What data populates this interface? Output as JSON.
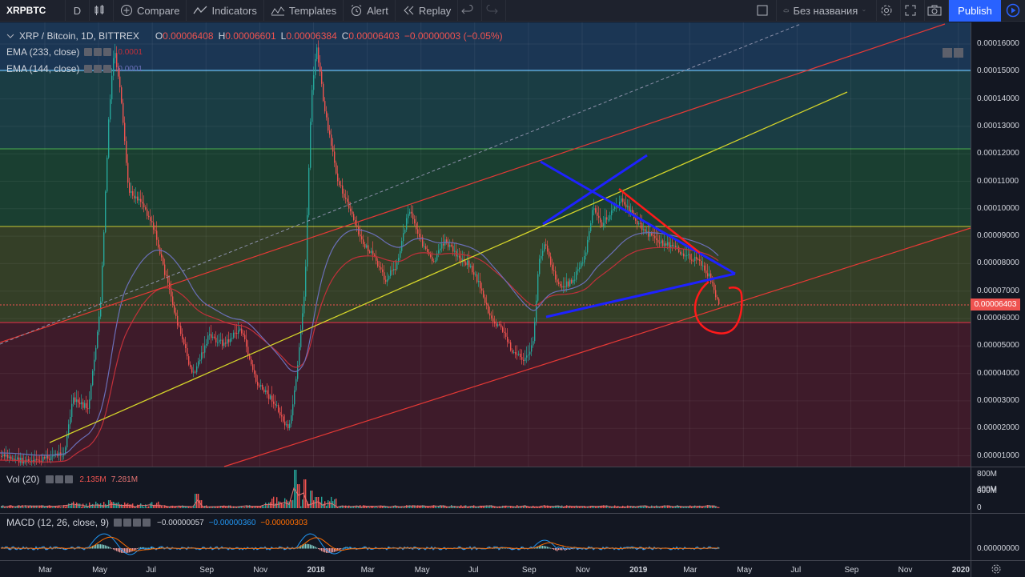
{
  "toolbar": {
    "symbol": "XRPBTC",
    "interval": "D",
    "compare": "Compare",
    "indicators": "Indicators",
    "templates": "Templates",
    "alert": "Alert",
    "replay": "Replay",
    "layout_name": "Без названия",
    "publish": "Publish"
  },
  "legend": {
    "title": "XRP / Bitcoin, 1D, BITTREX",
    "o_key": "O",
    "o": "0.00006408",
    "h_key": "H",
    "h": "0.00006601",
    "l_key": "L",
    "l": "0.00006384",
    "c_key": "C",
    "c": "0.00006403",
    "change": "−0.00000003 (−0.05%)",
    "ema233": "EMA (233, close)",
    "ema233_val": "0.0001",
    "ema144": "EMA (144, close)",
    "ema144_val": "0.0001",
    "vol": "Vol (20)",
    "vol_val1": "2.135M",
    "vol_val2": "7.281M",
    "macd": "MACD (12, 26, close, 9)",
    "macd_v1": "−0.00000057",
    "macd_v2": "−0.00000360",
    "macd_v3": "−0.00000303"
  },
  "price_scale": [
    "0.00016000",
    "0.00015000",
    "0.00014000",
    "0.00013000",
    "0.00012000",
    "0.00011000",
    "0.00010000",
    "0.00009000",
    "0.00008000",
    "0.00007000",
    "0.00006000",
    "0.00005000",
    "0.00004000",
    "0.00003000",
    "0.00002000",
    "0.00001000"
  ],
  "last_price": "0.00006403",
  "vol_scale": [
    "800M",
    "400M",
    "0"
  ],
  "macd_scale": [
    "0.00000000"
  ],
  "time_axis": [
    {
      "t": "Mar",
      "bold": false
    },
    {
      "t": "May",
      "bold": false
    },
    {
      "t": "Jul",
      "bold": false
    },
    {
      "t": "Sep",
      "bold": false
    },
    {
      "t": "Nov",
      "bold": false
    },
    {
      "t": "2018",
      "bold": true
    },
    {
      "t": "Mar",
      "bold": false
    },
    {
      "t": "May",
      "bold": false
    },
    {
      "t": "Jul",
      "bold": false
    },
    {
      "t": "Sep",
      "bold": false
    },
    {
      "t": "Nov",
      "bold": false
    },
    {
      "t": "2019",
      "bold": true
    },
    {
      "t": "Mar",
      "bold": false
    },
    {
      "t": "May",
      "bold": false
    },
    {
      "t": "Jul",
      "bold": false
    },
    {
      "t": "Sep",
      "bold": false
    },
    {
      "t": "Nov",
      "bold": false
    },
    {
      "t": "2020",
      "bold": true
    }
  ],
  "colors": {
    "bg": "#131722",
    "up": "#26a69a",
    "down": "#ef5350",
    "zone_top": "#1e3a5f",
    "zone_green": "#1b4a3a",
    "zone_olive": "#3a4a2a",
    "zone_red": "#4a1f2a",
    "blue_draw": "#1e22ff",
    "red_draw": "#ff1a1a",
    "yellow": "#d4d42a"
  }
}
